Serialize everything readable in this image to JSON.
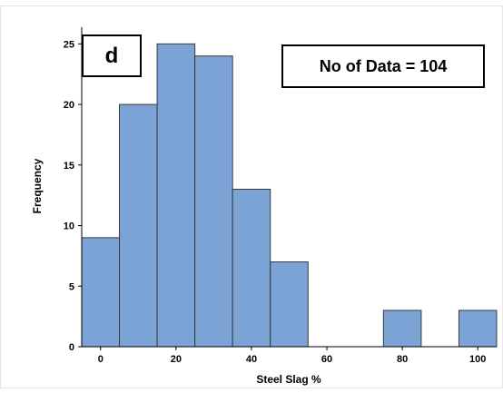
{
  "chart_data": {
    "type": "bar",
    "panel_label": "d",
    "annotation": "No of Data = 104",
    "xlabel": "Steel Slag %",
    "ylabel": "Frequency",
    "bins": [
      {
        "from": -5,
        "to": 5,
        "count": 9
      },
      {
        "from": 5,
        "to": 15,
        "count": 20
      },
      {
        "from": 15,
        "to": 25,
        "count": 25
      },
      {
        "from": 25,
        "to": 35,
        "count": 24
      },
      {
        "from": 35,
        "to": 45,
        "count": 13
      },
      {
        "from": 45,
        "to": 55,
        "count": 7
      },
      {
        "from": 55,
        "to": 65,
        "count": 0
      },
      {
        "from": 65,
        "to": 75,
        "count": 0
      },
      {
        "from": 75,
        "to": 85,
        "count": 3
      },
      {
        "from": 85,
        "to": 95,
        "count": 0
      },
      {
        "from": 95,
        "to": 105,
        "count": 3
      }
    ],
    "xticks": [
      "0",
      "20",
      "40",
      "60",
      "80",
      "100"
    ],
    "xtick_values": [
      0,
      20,
      40,
      60,
      80,
      100
    ],
    "yticks": [
      "0",
      "5",
      "10",
      "15",
      "20",
      "25"
    ],
    "ytick_values": [
      0,
      5,
      10,
      15,
      20,
      25
    ],
    "xlim": [
      -5,
      105
    ],
    "ylim": [
      0,
      26
    ],
    "grid": false,
    "colors": {
      "bar_fill": "#7BA3D6",
      "bar_edge": "#3a3a3a",
      "axis": "#000000"
    }
  }
}
